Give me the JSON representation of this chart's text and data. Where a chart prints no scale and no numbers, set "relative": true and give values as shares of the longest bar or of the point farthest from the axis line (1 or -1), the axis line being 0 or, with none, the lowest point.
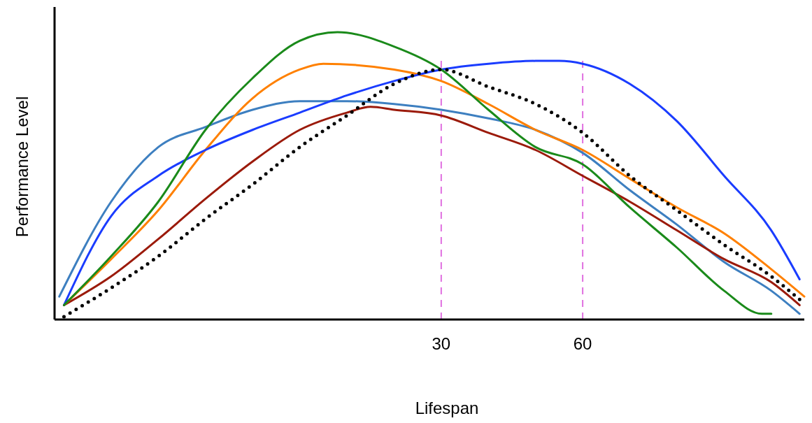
{
  "chart_data": {
    "type": "line",
    "relative": true,
    "xlabel": "Lifespan",
    "ylabel": "Performance Level",
    "xlim": [
      -52,
      107
    ],
    "xticks": [
      30,
      60
    ],
    "line_style": "solid",
    "ref_lines": [
      {
        "axis": "x",
        "value": 30,
        "color": "#e070e0",
        "line_style": "dashed"
      },
      {
        "axis": "x",
        "value": 60,
        "color": "#e070e0",
        "line_style": "dashed"
      }
    ],
    "series": [
      {
        "color": "#3d7fc0",
        "x": [
          -51,
          -40,
          -30,
          -20,
          -10,
          0,
          10,
          20,
          30,
          40,
          50,
          60,
          70,
          80,
          90,
          100,
          106
        ],
        "values": [
          0.08,
          0.41,
          0.6,
          0.67,
          0.73,
          0.76,
          0.76,
          0.75,
          0.73,
          0.7,
          0.66,
          0.58,
          0.45,
          0.33,
          0.2,
          0.1,
          0.02
        ]
      },
      {
        "color": "#9b1a0a",
        "x": [
          -50,
          -40,
          -30,
          -20,
          -10,
          0,
          10,
          15,
          20,
          30,
          40,
          50,
          60,
          70,
          80,
          90,
          100,
          106
        ],
        "values": [
          0.05,
          0.15,
          0.28,
          0.42,
          0.55,
          0.66,
          0.72,
          0.74,
          0.73,
          0.71,
          0.65,
          0.59,
          0.5,
          0.41,
          0.31,
          0.21,
          0.13,
          0.05
        ]
      },
      {
        "color": "#ff8000",
        "x": [
          -50,
          -40,
          -30,
          -20,
          -10,
          0,
          5,
          20,
          30,
          40,
          50,
          60,
          70,
          80,
          90,
          100,
          107
        ],
        "values": [
          0.05,
          0.21,
          0.38,
          0.59,
          0.77,
          0.87,
          0.89,
          0.87,
          0.83,
          0.75,
          0.66,
          0.59,
          0.49,
          0.39,
          0.3,
          0.175,
          0.08
        ]
      },
      {
        "color": "#1a3cff",
        "x": [
          -50,
          -40,
          -30,
          -20,
          -10,
          0,
          10,
          20,
          30,
          40,
          50,
          55,
          60,
          70,
          80,
          90,
          100,
          106
        ],
        "values": [
          0.05,
          0.36,
          0.5,
          0.59,
          0.66,
          0.72,
          0.78,
          0.83,
          0.87,
          0.89,
          0.9,
          0.9,
          0.89,
          0.82,
          0.69,
          0.5,
          0.31,
          0.14
        ]
      },
      {
        "color": "#1a8a1a",
        "x": [
          -50,
          -40,
          -30,
          -20,
          -10,
          0,
          8,
          20,
          30,
          40,
          50,
          60,
          70,
          80,
          90,
          98,
          100
        ],
        "values": [
          0.05,
          0.22,
          0.41,
          0.66,
          0.84,
          0.97,
          1,
          0.95,
          0.87,
          0.73,
          0.6,
          0.54,
          0.39,
          0.25,
          0.1,
          0.02,
          0.02
        ]
      },
      {
        "color": "#000000",
        "line_style": "dotted",
        "x": [
          -50,
          -40,
          -30,
          -20,
          -10,
          0,
          10,
          20,
          30,
          40,
          50,
          60,
          70,
          80,
          90,
          100,
          106
        ],
        "values": [
          0.01,
          0.11,
          0.22,
          0.35,
          0.47,
          0.6,
          0.71,
          0.82,
          0.87,
          0.81,
          0.75,
          0.65,
          0.5,
          0.38,
          0.26,
          0.15,
          0.07
        ]
      }
    ]
  }
}
